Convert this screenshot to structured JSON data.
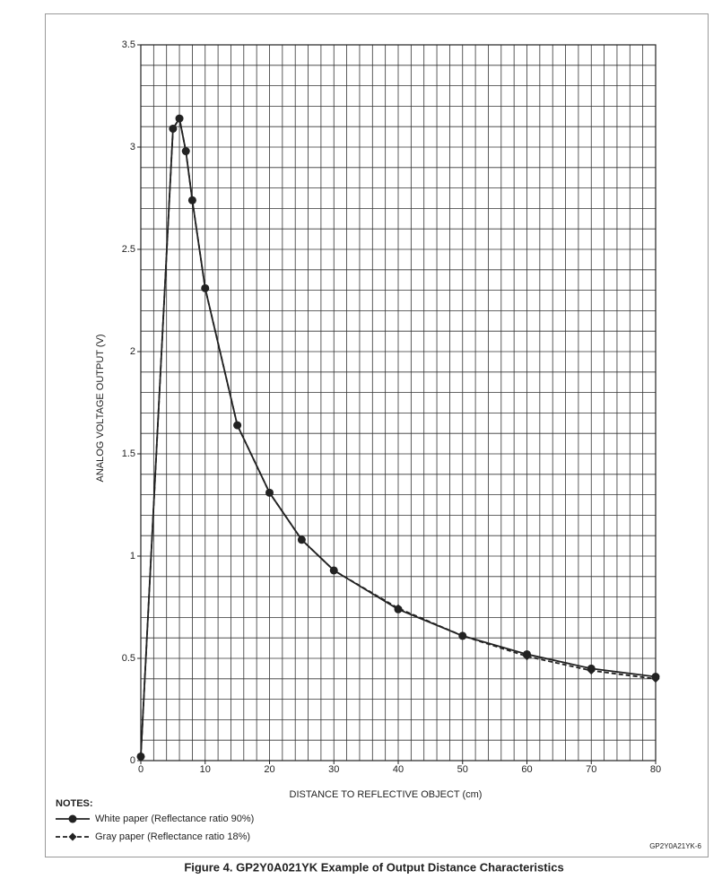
{
  "chart_data": {
    "type": "line",
    "caption": "Figure 4.  GP2Y0A021YK Example of Output Distance Characteristics",
    "xlabel": "DISTANCE TO REFLECTIVE OBJECT (cm)",
    "ylabel": "ANALOG VOLTAGE OUTPUT (V)",
    "notes_title": "NOTES:",
    "figure_id": "GP2Y0A21YK-6",
    "x": [
      0,
      5,
      6,
      7,
      8,
      10,
      15,
      20,
      25,
      30,
      40,
      50,
      60,
      70,
      80
    ],
    "series": [
      {
        "name": "White paper (Reflectance ratio 90%)",
        "color": "#222222",
        "line_style": "solid",
        "marker": "circle",
        "values": [
          0.02,
          3.09,
          3.14,
          2.98,
          2.74,
          2.31,
          1.64,
          1.31,
          1.08,
          0.93,
          0.74,
          0.61,
          0.52,
          0.45,
          0.41
        ]
      },
      {
        "name": "Gray paper (Reflectance ratio 18%)",
        "color": "#222222",
        "line_style": "dashed",
        "marker": "diamond",
        "values": [
          0.02,
          3.09,
          3.14,
          2.98,
          2.74,
          2.31,
          1.64,
          1.31,
          1.08,
          0.93,
          0.745,
          0.61,
          0.51,
          0.44,
          0.4
        ]
      }
    ],
    "xlim": [
      0,
      80
    ],
    "ylim": [
      0,
      3.5
    ],
    "xticks": [
      0,
      10,
      20,
      30,
      40,
      50,
      60,
      70,
      80
    ],
    "yticks": [
      0,
      0.5,
      1,
      1.5,
      2,
      2.5,
      3,
      3.5
    ],
    "xgrid": [
      0,
      2,
      4,
      6,
      8,
      10,
      12,
      14,
      16,
      18,
      20,
      22,
      24,
      26,
      28,
      30,
      32,
      34,
      36,
      38,
      40,
      42,
      44,
      46,
      48,
      50,
      52,
      54,
      56,
      58,
      60,
      62,
      64,
      66,
      68,
      70,
      72,
      74,
      76,
      78,
      80
    ],
    "ygrid": [
      0,
      0.1,
      0.2,
      0.3,
      0.4,
      0.5,
      0.6,
      0.7,
      0.8,
      0.9,
      1,
      1.1,
      1.2,
      1.3,
      1.4,
      1.5,
      1.6,
      1.7,
      1.8,
      1.9,
      2,
      2.1,
      2.2,
      2.3,
      2.4,
      2.5,
      2.6,
      2.7,
      2.8,
      2.9,
      3,
      3.1,
      3.2,
      3.3,
      3.4,
      3.5
    ],
    "grid": true
  }
}
